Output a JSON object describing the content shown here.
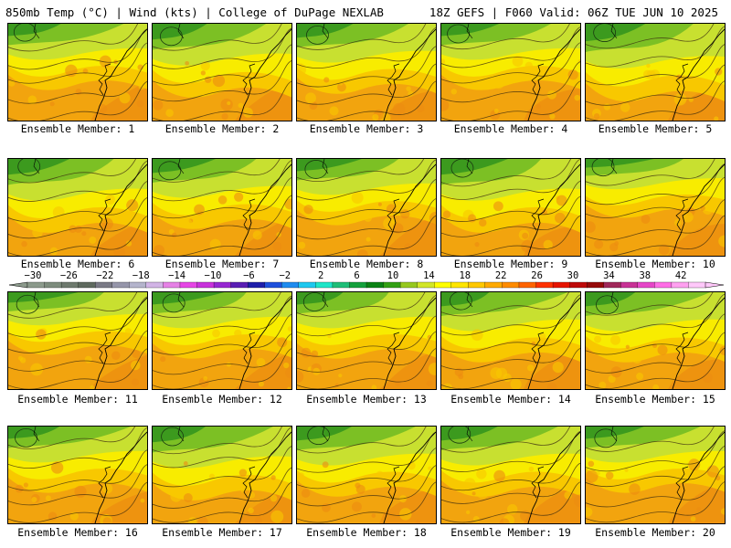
{
  "header": {
    "left_title": "850mb Temp (°C) | Wind (kts) | College of DuPage NEXLAB",
    "right_title": "18Z GEFS | F060 Valid: 06Z TUE JUN 10 2025"
  },
  "panel_label_prefix": "Ensemble Member:",
  "members": [
    {
      "label": "Ensemble Member: 1",
      "green": 0.35
    },
    {
      "label": "Ensemble Member: 2",
      "green": 0.45
    },
    {
      "label": "Ensemble Member: 3",
      "green": 0.4
    },
    {
      "label": "Ensemble Member: 4",
      "green": 0.35
    },
    {
      "label": "Ensemble Member: 5",
      "green": 0.5
    },
    {
      "label": "Ensemble Member: 6",
      "green": 0.45
    },
    {
      "label": "Ensemble Member: 7",
      "green": 0.4
    },
    {
      "label": "Ensemble Member: 8",
      "green": 0.35
    },
    {
      "label": "Ensemble Member: 9",
      "green": 0.45
    },
    {
      "label": "Ensemble Member: 10",
      "green": 0.25
    },
    {
      "label": "Ensemble Member: 11",
      "green": 0.3
    },
    {
      "label": "Ensemble Member: 12",
      "green": 0.35
    },
    {
      "label": "Ensemble Member: 13",
      "green": 0.35
    },
    {
      "label": "Ensemble Member: 14",
      "green": 0.4
    },
    {
      "label": "Ensemble Member: 15",
      "green": 0.4
    },
    {
      "label": "Ensemble Member: 16",
      "green": 0.35
    },
    {
      "label": "Ensemble Member: 17",
      "green": 0.45
    },
    {
      "label": "Ensemble Member: 18",
      "green": 0.4
    },
    {
      "label": "Ensemble Member: 19",
      "green": 0.4
    },
    {
      "label": "Ensemble Member: 20",
      "green": 0.35
    }
  ],
  "colorbar": {
    "tick_labels": [
      "−30",
      "−26",
      "−22",
      "−18",
      "−14",
      "−10",
      "−6",
      "−2",
      "2",
      "6",
      "10",
      "14",
      "18",
      "22",
      "26",
      "30",
      "34",
      "38",
      "42"
    ],
    "colors": [
      "#8c9a8c",
      "#7d8c7d",
      "#6e7a6e",
      "#5f6a5f",
      "#7a7a86",
      "#9696aa",
      "#b4b4cc",
      "#d2b4e6",
      "#e682e6",
      "#e646e6",
      "#c832dc",
      "#9628d2",
      "#5a1eb4",
      "#1e1eaa",
      "#1e50dc",
      "#1e8cf0",
      "#1ec8f0",
      "#1ee6c8",
      "#1ebe78",
      "#14a03c",
      "#0a8214",
      "#32a014",
      "#96c81e",
      "#d2e628",
      "#ffff00",
      "#ffe600",
      "#ffc800",
      "#ffaa00",
      "#ff8c00",
      "#ff6400",
      "#ff3200",
      "#e61400",
      "#be0a0a",
      "#960a0a",
      "#a0285a",
      "#c83296",
      "#e646c8",
      "#ff6ee6",
      "#ffa0f0",
      "#ffc8fa"
    ]
  },
  "field_colors": {
    "dark_green": "#3c9a1e",
    "green": "#7cc024",
    "yellow_green": "#c8e030",
    "yellow": "#f8ec00",
    "light_orange": "#f8c800",
    "orange": "#f2a40e",
    "dark_orange": "#ec8c10"
  }
}
